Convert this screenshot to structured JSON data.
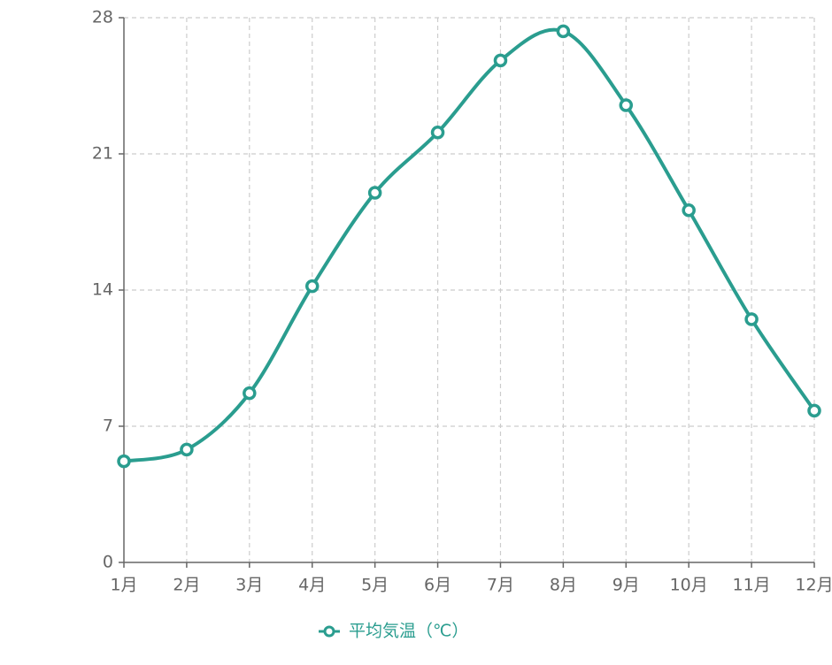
{
  "chart_data": {
    "type": "line",
    "categories": [
      "1月",
      "2月",
      "3月",
      "4月",
      "5月",
      "6月",
      "7月",
      "8月",
      "9月",
      "10月",
      "11月",
      "12月"
    ],
    "series": [
      {
        "name": "平均気温（℃）",
        "color": "#2a9d8f",
        "values": [
          5.2,
          5.8,
          8.7,
          14.2,
          19.0,
          22.1,
          25.8,
          27.3,
          23.5,
          18.1,
          12.5,
          7.8
        ]
      }
    ],
    "ylim": [
      0,
      28
    ],
    "yticks": [
      0,
      7,
      14,
      21,
      28
    ],
    "grid": true,
    "legend": "bottom"
  }
}
